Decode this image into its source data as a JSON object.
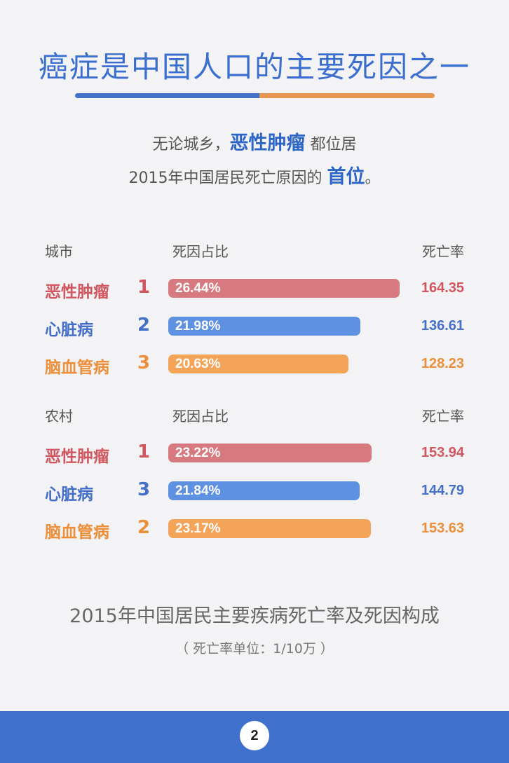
{
  "title": "癌症是中国人口的主要死因之一",
  "intro": {
    "line1_pre": "无论城乡，",
    "line1_highlight": "恶性肿瘤",
    "line1_post": " 都位居",
    "line2_pre": "2015年中国居民死亡原因的 ",
    "line2_highlight": "首位",
    "line2_post": "。"
  },
  "colors": {
    "title": "#3b6fcf",
    "cancer_text": "#d0575f",
    "heart_text": "#4470c8",
    "stroke_text": "#ec8f3a",
    "cancer_bar": "#d67a80",
    "heart_bar": "#5f91e2",
    "stroke_bar": "#f4a459",
    "footer": "#3f71cc"
  },
  "chart_data": [
    {
      "type": "bar",
      "group_label": "城市",
      "col_share_label": "死因占比",
      "col_rate_label": "死亡率",
      "rows": [
        {
          "category": "恶性肿瘤",
          "rank": "1",
          "share": 26.44,
          "share_label": "26.44%",
          "rate": 164.35,
          "rate_label": "164.35",
          "color": "red"
        },
        {
          "category": "心脏病",
          "rank": "2",
          "share": 21.98,
          "share_label": "21.98%",
          "rate": 136.61,
          "rate_label": "136.61",
          "color": "blue"
        },
        {
          "category": "脑血管病",
          "rank": "3",
          "share": 20.63,
          "share_label": "20.63%",
          "rate": 128.23,
          "rate_label": "128.23",
          "color": "orange"
        }
      ]
    },
    {
      "type": "bar",
      "group_label": "农村",
      "col_share_label": "死因占比",
      "col_rate_label": "死亡率",
      "rows": [
        {
          "category": "恶性肿瘤",
          "rank": "1",
          "share": 23.22,
          "share_label": "23.22%",
          "rate": 153.94,
          "rate_label": "153.94",
          "color": "red"
        },
        {
          "category": "心脏病",
          "rank": "3",
          "share": 21.84,
          "share_label": "21.84%",
          "rate": 144.79,
          "rate_label": "144.79",
          "color": "blue"
        },
        {
          "category": "脑血管病",
          "rank": "2",
          "share": 23.17,
          "share_label": "23.17%",
          "rate": 153.63,
          "rate_label": "153.63",
          "color": "orange"
        }
      ]
    }
  ],
  "caption": "2015年中国居民主要疾病死亡率及死因构成",
  "unit_note": "（ 死亡率单位：1/10万 ）",
  "page_number": "2"
}
